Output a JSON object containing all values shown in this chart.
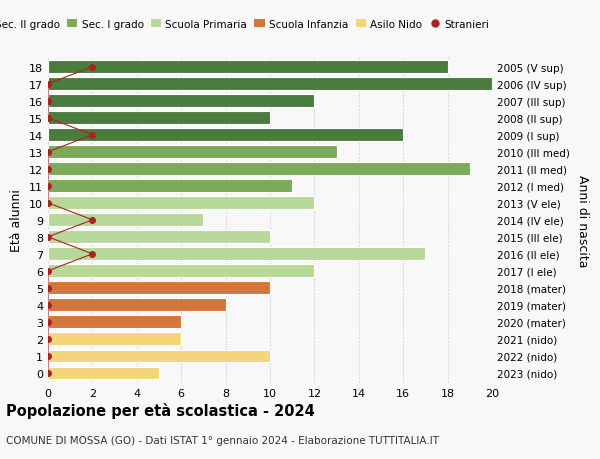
{
  "ages": [
    18,
    17,
    16,
    15,
    14,
    13,
    12,
    11,
    10,
    9,
    8,
    7,
    6,
    5,
    4,
    3,
    2,
    1,
    0
  ],
  "right_labels": [
    "2005 (V sup)",
    "2006 (IV sup)",
    "2007 (III sup)",
    "2008 (II sup)",
    "2009 (I sup)",
    "2010 (III med)",
    "2011 (II med)",
    "2012 (I med)",
    "2013 (V ele)",
    "2014 (IV ele)",
    "2015 (III ele)",
    "2016 (II ele)",
    "2017 (I ele)",
    "2018 (mater)",
    "2019 (mater)",
    "2020 (mater)",
    "2021 (nido)",
    "2022 (nido)",
    "2023 (nido)"
  ],
  "bar_values": [
    18,
    20,
    12,
    10,
    16,
    13,
    19,
    11,
    12,
    7,
    10,
    17,
    12,
    10,
    8,
    6,
    6,
    10,
    5
  ],
  "bar_colors": [
    "#4a7c3f",
    "#4a7c3f",
    "#4a7c3f",
    "#4a7c3f",
    "#4a7c3f",
    "#7aaa5a",
    "#7aaa5a",
    "#7aaa5a",
    "#b8d89a",
    "#b8d89a",
    "#b8d89a",
    "#b8d89a",
    "#b8d89a",
    "#d4763b",
    "#d4763b",
    "#d4763b",
    "#f5d57a",
    "#f5d57a",
    "#f5d57a"
  ],
  "stranieri_x": [
    2,
    0,
    0,
    0,
    2,
    0,
    0,
    0,
    0,
    2,
    0,
    2,
    0,
    0,
    0,
    0,
    0,
    0,
    0
  ],
  "xlim": [
    0,
    20
  ],
  "ylabel": "Età alunni",
  "ylabel_right": "Anni di nascita",
  "title": "Popolazione per età scolastica - 2024",
  "subtitle": "COMUNE DI MOSSA (GO) - Dati ISTAT 1° gennaio 2024 - Elaborazione TUTTITALIA.IT",
  "legend_labels": [
    "Sec. II grado",
    "Sec. I grado",
    "Scuola Primaria",
    "Scuola Infanzia",
    "Asilo Nido",
    "Stranieri"
  ],
  "legend_colors": [
    "#4a7c3f",
    "#7aaa5a",
    "#b8d89a",
    "#d4763b",
    "#f5d57a",
    "#cc0000"
  ],
  "bg_color": "#f8f8f8",
  "grid_color": "#cccccc",
  "bar_height": 0.75,
  "xticks": [
    0,
    2,
    4,
    6,
    8,
    10,
    12,
    14,
    16,
    18,
    20
  ]
}
